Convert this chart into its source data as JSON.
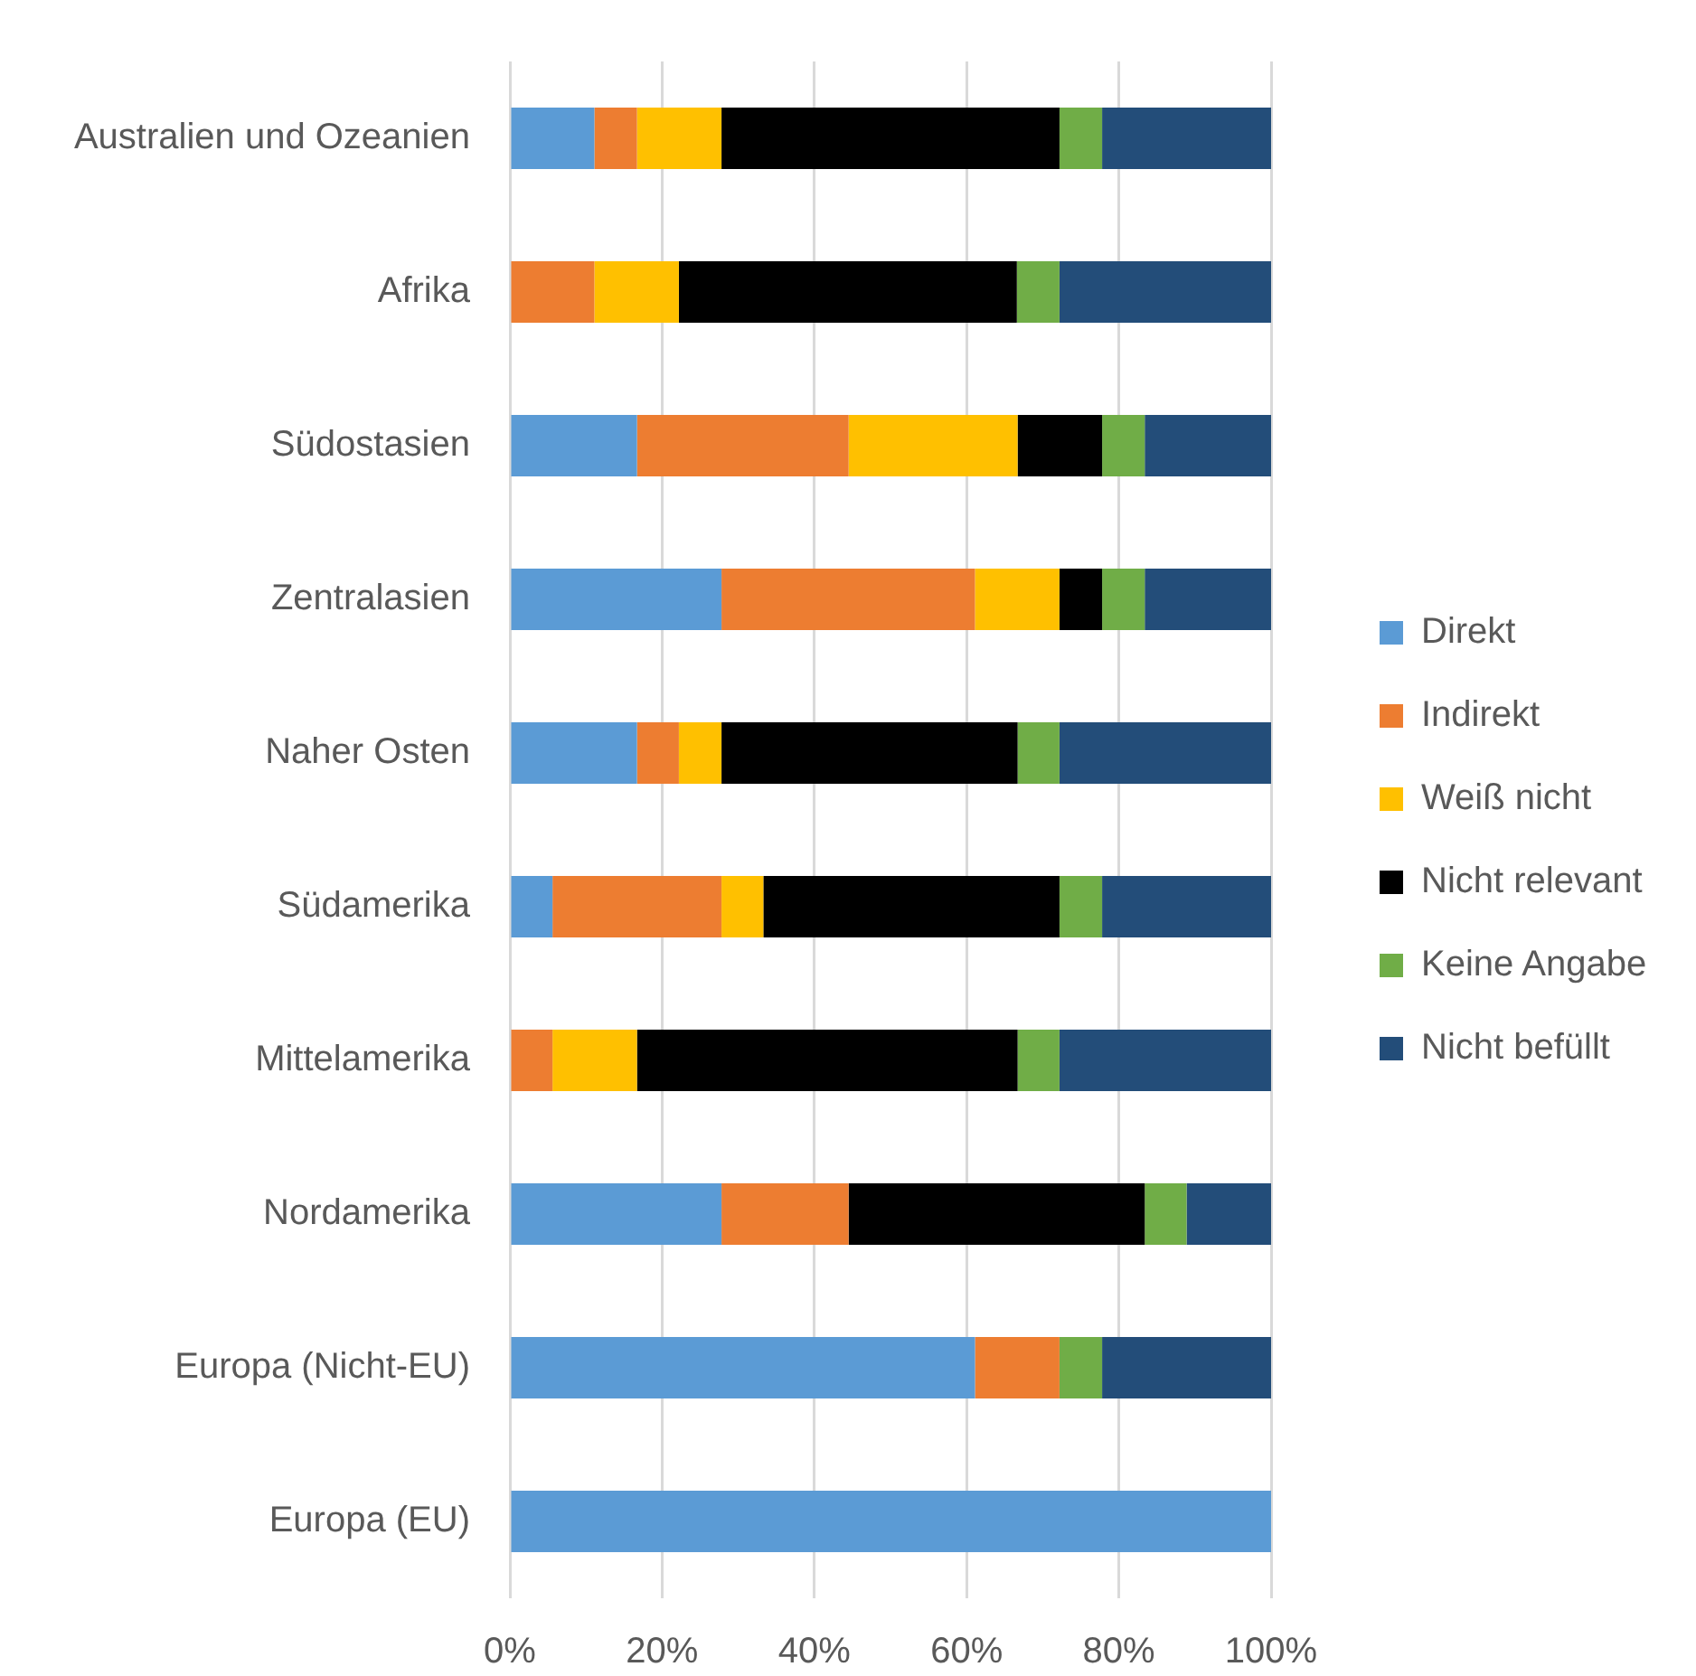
{
  "chart_data": {
    "type": "bar",
    "orientation": "horizontal",
    "stacked": true,
    "categories": [
      "Australien und Ozeanien",
      "Afrika",
      "Südostasien",
      "Zentralasien",
      "Naher Osten",
      "Südamerika",
      "Mittelamerika",
      "Nordamerika",
      "Europa (Nicht-EU)",
      "Europa (EU)"
    ],
    "series": [
      {
        "name": "Direkt",
        "color": "#5b9bd5",
        "values": [
          11.1,
          0,
          16.7,
          27.8,
          16.7,
          5.6,
          0,
          27.8,
          61.1,
          100
        ]
      },
      {
        "name": "Indirekt",
        "color": "#ed7d31",
        "values": [
          5.6,
          11.1,
          27.8,
          33.3,
          5.5,
          22.2,
          5.6,
          16.7,
          11.1,
          0
        ]
      },
      {
        "name": "Weiß nicht",
        "color": "#ffc000",
        "values": [
          11.1,
          11.1,
          22.2,
          11.1,
          5.6,
          5.5,
          11.1,
          0,
          0,
          0
        ]
      },
      {
        "name": "Nicht relevant",
        "color": "#000000",
        "values": [
          44.4,
          44.4,
          11.1,
          5.6,
          38.9,
          38.9,
          50,
          38.9,
          0,
          0
        ]
      },
      {
        "name": "Keine Angabe",
        "color": "#70ad47",
        "values": [
          5.6,
          5.6,
          5.6,
          5.6,
          5.5,
          5.6,
          5.5,
          5.5,
          5.6,
          0
        ]
      },
      {
        "name": "Nicht befüllt",
        "color": "#234d79",
        "values": [
          22.2,
          27.8,
          16.6,
          16.6,
          27.8,
          22.2,
          27.8,
          11.1,
          22.2,
          0
        ]
      }
    ],
    "xlim": [
      0,
      100
    ],
    "xticks": [
      {
        "value": 0,
        "label": "0%"
      },
      {
        "value": 20,
        "label": "20%"
      },
      {
        "value": 40,
        "label": "40%"
      },
      {
        "value": 60,
        "label": "60%"
      },
      {
        "value": 80,
        "label": "80%"
      },
      {
        "value": 100,
        "label": "100%"
      }
    ],
    "grid": "x",
    "legend": "right"
  }
}
